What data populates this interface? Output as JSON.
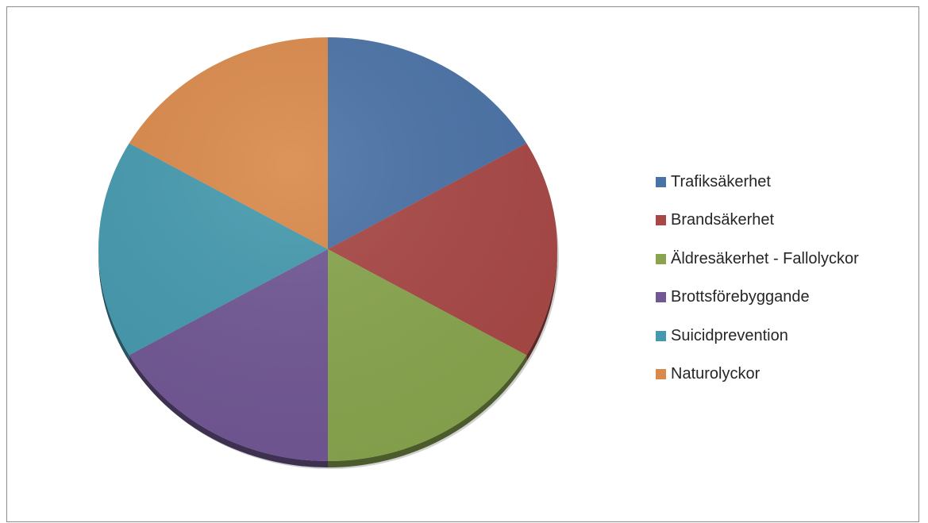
{
  "chart_data": {
    "type": "pie",
    "title": "",
    "categories": [
      "Trafiksäkerhet",
      "Brandsäkerhet",
      "Äldresäkerhet - Fallolyckor",
      "Brottsförebyggande",
      "Suicidprevention",
      "Naturolyckor"
    ],
    "values": [
      1,
      1,
      1,
      1,
      1,
      1
    ],
    "colors": [
      "#4A72A6",
      "#A84846",
      "#88A54E",
      "#715794",
      "#4599AE",
      "#D9894A"
    ],
    "legend_position": "right",
    "start_angle_deg": 0,
    "direction": "clockwise",
    "style": "3d-tilt"
  }
}
